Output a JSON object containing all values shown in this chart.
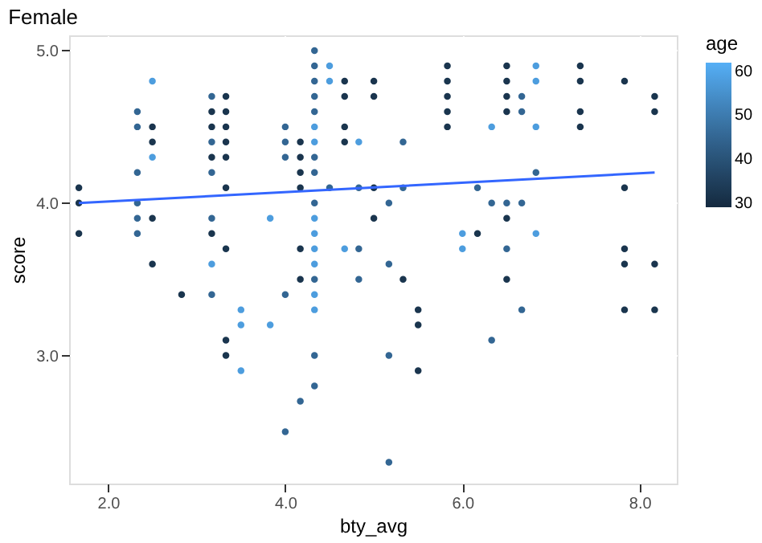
{
  "chart_data": {
    "type": "scatter",
    "title": "Female",
    "xlabel": "bty_avg",
    "ylabel": "score",
    "legend_title": "age",
    "xlim": [
      1.56,
      8.42
    ],
    "ylim": [
      2.16,
      5.1
    ],
    "xticks": [
      {
        "value": 2,
        "label": "2.0"
      },
      {
        "value": 4,
        "label": "4.0"
      },
      {
        "value": 6,
        "label": "6.0"
      },
      {
        "value": 8,
        "label": "8.0"
      }
    ],
    "yticks": [
      {
        "value": 3,
        "label": "3.0"
      },
      {
        "value": 4,
        "label": "4.0"
      },
      {
        "value": 5,
        "label": "5.0"
      }
    ],
    "grid": true,
    "clim": [
      29,
      62
    ],
    "cticks": [
      30,
      40,
      50,
      60
    ],
    "series": [
      {
        "marker": "circle",
        "x": [
          1.67,
          1.67,
          1.67,
          2.33,
          2.33,
          2.33,
          2.33,
          2.33,
          2.33,
          2.5,
          2.5,
          2.5,
          2.5,
          2.5,
          2.5,
          2.83,
          3.17,
          3.17,
          3.17,
          3.17,
          3.17,
          3.17,
          3.17,
          3.17,
          3.17,
          3.17,
          3.33,
          3.33,
          3.33,
          3.33,
          3.33,
          3.33,
          3.33,
          3.33,
          3.33,
          3.5,
          3.5,
          3.5,
          3.83,
          3.83,
          4.0,
          4.0,
          4.0,
          4.0,
          4.0,
          4.17,
          4.17,
          4.17,
          4.17,
          4.17,
          4.17,
          4.17,
          4.33,
          4.33,
          4.33,
          4.33,
          4.33,
          4.33,
          4.33,
          4.33,
          4.33,
          4.33,
          4.33,
          4.33,
          4.33,
          4.33,
          4.33,
          4.33,
          4.33,
          4.33,
          4.33,
          4.5,
          4.5,
          4.5,
          4.67,
          4.67,
          4.67,
          4.67,
          4.67,
          4.83,
          4.83,
          4.83,
          4.83,
          5.0,
          5.0,
          5.0,
          5.0,
          5.17,
          5.17,
          5.17,
          5.17,
          5.33,
          5.33,
          5.33,
          5.5,
          5.5,
          5.5,
          5.83,
          5.83,
          5.83,
          5.83,
          5.83,
          6.0,
          6.0,
          6.17,
          6.17,
          6.33,
          6.33,
          6.33,
          6.5,
          6.5,
          6.5,
          6.5,
          6.5,
          6.5,
          6.5,
          6.5,
          6.67,
          6.67,
          6.67,
          6.67,
          6.83,
          6.83,
          6.83,
          6.83,
          6.83,
          7.33,
          7.33,
          7.33,
          7.33,
          7.83,
          7.83,
          7.83,
          7.83,
          7.83,
          8.17,
          8.17,
          8.17,
          8.17
        ],
        "values": [
          4.1,
          4.0,
          3.8,
          4.6,
          4.5,
          4.2,
          4.0,
          3.9,
          3.8,
          4.8,
          4.5,
          4.4,
          4.3,
          3.9,
          3.6,
          3.4,
          4.7,
          4.6,
          4.5,
          4.4,
          4.3,
          4.2,
          3.9,
          3.8,
          3.6,
          3.4,
          4.7,
          4.6,
          4.5,
          4.4,
          4.3,
          4.1,
          3.7,
          3.1,
          3.0,
          3.3,
          3.2,
          2.9,
          3.9,
          3.2,
          4.5,
          4.4,
          4.3,
          3.4,
          2.5,
          4.4,
          4.3,
          4.2,
          4.1,
          3.7,
          3.5,
          2.7,
          5.0,
          4.9,
          4.8,
          4.7,
          4.6,
          4.5,
          4.4,
          4.3,
          4.2,
          4.0,
          3.9,
          3.8,
          3.7,
          3.6,
          3.5,
          3.4,
          3.3,
          3.0,
          2.8,
          4.9,
          4.8,
          4.1,
          4.8,
          4.7,
          4.5,
          4.4,
          3.7,
          4.4,
          4.1,
          3.7,
          3.5,
          4.8,
          4.7,
          4.1,
          3.9,
          4.0,
          3.6,
          3.0,
          2.3,
          4.4,
          4.1,
          3.5,
          3.3,
          3.2,
          2.9,
          4.9,
          4.8,
          4.7,
          4.6,
          4.5,
          3.8,
          3.7,
          4.1,
          3.8,
          4.5,
          4.0,
          3.1,
          4.9,
          4.8,
          4.7,
          4.6,
          4.0,
          3.9,
          3.7,
          3.5,
          4.7,
          4.6,
          4.0,
          3.3,
          4.9,
          4.8,
          4.5,
          4.2,
          3.8,
          4.9,
          4.8,
          4.6,
          4.5,
          4.8,
          4.1,
          3.7,
          3.6,
          3.3,
          4.7,
          4.6,
          3.6,
          3.3
        ],
        "cvalues": [
          32,
          32,
          32,
          45,
          45,
          45,
          45,
          45,
          45,
          58,
          32,
          32,
          58,
          32,
          32,
          32,
          45,
          32,
          32,
          45,
          32,
          45,
          45,
          32,
          58,
          45,
          32,
          32,
          32,
          32,
          32,
          32,
          32,
          32,
          32,
          58,
          58,
          58,
          58,
          58,
          45,
          45,
          45,
          45,
          45,
          32,
          32,
          32,
          32,
          32,
          32,
          45,
          45,
          45,
          45,
          45,
          45,
          58,
          58,
          45,
          45,
          45,
          58,
          58,
          58,
          58,
          45,
          58,
          58,
          45,
          45,
          58,
          58,
          45,
          32,
          32,
          32,
          32,
          58,
          58,
          45,
          45,
          45,
          32,
          32,
          32,
          32,
          45,
          45,
          45,
          45,
          45,
          45,
          32,
          32,
          32,
          32,
          32,
          32,
          32,
          32,
          32,
          58,
          58,
          45,
          32,
          58,
          45,
          45,
          32,
          32,
          32,
          32,
          45,
          32,
          45,
          32,
          45,
          45,
          45,
          45,
          58,
          58,
          58,
          45,
          58,
          32,
          32,
          32,
          32,
          32,
          32,
          32,
          32,
          32,
          32,
          32,
          32,
          32
        ],
        "colors": [
          "#1a3650",
          "#1a3650",
          "#1a3650",
          "#336a98",
          "#336a98",
          "#336a98",
          "#336a98",
          "#336a98",
          "#336a98",
          "#4d9fe0",
          "#1a3650",
          "#1a3650",
          "#4d9fe0",
          "#1a3650",
          "#1a3650",
          "#1a3650",
          "#336a98",
          "#1a3650",
          "#1a3650",
          "#336a98",
          "#1a3650",
          "#336a98",
          "#336a98",
          "#1a3650",
          "#4d9fe0",
          "#336a98",
          "#1a3650",
          "#1a3650",
          "#1a3650",
          "#1a3650",
          "#1a3650",
          "#1a3650",
          "#1a3650",
          "#1a3650",
          "#1a3650",
          "#4d9fe0",
          "#4d9fe0",
          "#4d9fe0",
          "#4d9fe0",
          "#4d9fe0",
          "#336a98",
          "#336a98",
          "#336a98",
          "#336a98",
          "#336a98",
          "#1a3650",
          "#1a3650",
          "#1a3650",
          "#1a3650",
          "#1a3650",
          "#1a3650",
          "#336a98",
          "#336a98",
          "#336a98",
          "#336a98",
          "#336a98",
          "#336a98",
          "#4d9fe0",
          "#4d9fe0",
          "#336a98",
          "#336a98",
          "#336a98",
          "#4d9fe0",
          "#4d9fe0",
          "#4d9fe0",
          "#4d9fe0",
          "#336a98",
          "#4d9fe0",
          "#4d9fe0",
          "#336a98",
          "#336a98",
          "#4d9fe0",
          "#4d9fe0",
          "#336a98",
          "#1a3650",
          "#1a3650",
          "#1a3650",
          "#1a3650",
          "#4d9fe0",
          "#4d9fe0",
          "#336a98",
          "#336a98",
          "#336a98",
          "#1a3650",
          "#1a3650",
          "#1a3650",
          "#1a3650",
          "#336a98",
          "#336a98",
          "#336a98",
          "#336a98",
          "#336a98",
          "#336a98",
          "#1a3650",
          "#1a3650",
          "#1a3650",
          "#1a3650",
          "#1a3650",
          "#1a3650",
          "#1a3650",
          "#1a3650",
          "#1a3650",
          "#4d9fe0",
          "#4d9fe0",
          "#336a98",
          "#1a3650",
          "#4d9fe0",
          "#336a98",
          "#336a98",
          "#1a3650",
          "#1a3650",
          "#1a3650",
          "#1a3650",
          "#336a98",
          "#1a3650",
          "#336a98",
          "#1a3650",
          "#336a98",
          "#336a98",
          "#336a98",
          "#336a98",
          "#4d9fe0",
          "#4d9fe0",
          "#4d9fe0",
          "#336a98",
          "#4d9fe0",
          "#1a3650",
          "#1a3650",
          "#1a3650",
          "#1a3650",
          "#1a3650",
          "#1a3650",
          "#1a3650",
          "#1a3650",
          "#1a3650",
          "#1a3650",
          "#1a3650",
          "#1a3650",
          "#1a3650"
        ]
      },
      {
        "type": "line",
        "color": "#3366ff",
        "x": [
          1.67,
          8.17
        ],
        "values": [
          4.0,
          4.2
        ]
      }
    ]
  }
}
